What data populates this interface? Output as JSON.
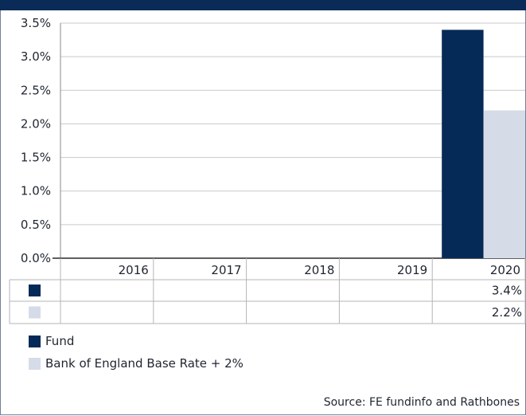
{
  "chart_data": {
    "type": "bar",
    "categories": [
      "2016",
      "2017",
      "2018",
      "2019",
      "2020"
    ],
    "series": [
      {
        "name": "Fund",
        "values": [
          null,
          null,
          null,
          null,
          3.4
        ],
        "table_values": [
          "",
          "",
          "",
          "",
          "3.4%"
        ],
        "color": "#062a57"
      },
      {
        "name": "Bank of England Base Rate + 2%",
        "values": [
          null,
          null,
          null,
          null,
          2.2
        ],
        "table_values": [
          "",
          "",
          "",
          "",
          "2.2%"
        ],
        "color": "#d5dce8"
      }
    ],
    "y_ticks": [
      "0.0%",
      "0.5%",
      "1.0%",
      "1.5%",
      "2.0%",
      "2.5%",
      "3.0%",
      "3.5%"
    ],
    "ylim": [
      0,
      3.5
    ],
    "grid": true,
    "legend_position": "bottom-left",
    "source": "Source: FE fundinfo and Rathbones"
  },
  "colors": {
    "header_band": "#0a2a57",
    "grid": "#c9c9c9",
    "table_border": "#b5b5b5"
  }
}
